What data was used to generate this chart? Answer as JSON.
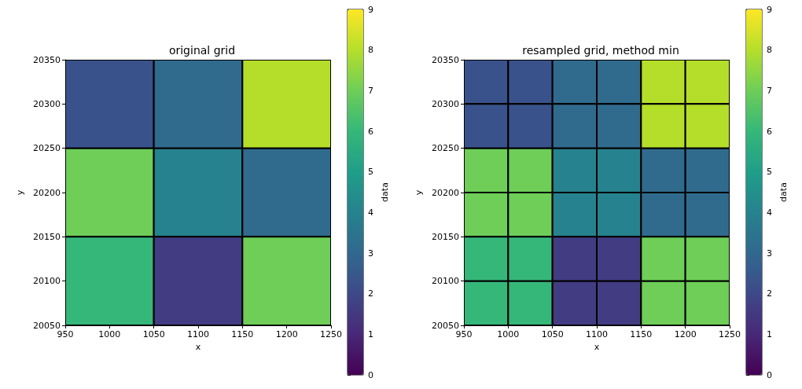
{
  "chart_data": [
    {
      "type": "heatmap",
      "title": "original grid",
      "xlabel": "x",
      "ylabel": "y",
      "clabel": "data",
      "xlim": [
        950,
        1250
      ],
      "ylim": [
        20050,
        20350
      ],
      "xticks": [
        950,
        1000,
        1050,
        1100,
        1150,
        1200,
        1250
      ],
      "yticks": [
        20050,
        20100,
        20150,
        20200,
        20250,
        20300,
        20350
      ],
      "clim": [
        0,
        9
      ],
      "cticks": [
        0,
        1,
        2,
        3,
        4,
        5,
        6,
        7,
        8,
        9
      ],
      "cells": [
        [
          2.3,
          3.1,
          8
        ],
        [
          7,
          4,
          3.1
        ],
        [
          6,
          1.6,
          7
        ]
      ]
    },
    {
      "type": "heatmap",
      "title": "resampled grid, method min",
      "xlabel": "x",
      "ylabel": "y",
      "clabel": "data",
      "xlim": [
        950,
        1250
      ],
      "ylim": [
        20050,
        20350
      ],
      "xticks": [
        950,
        1000,
        1050,
        1100,
        1150,
        1200,
        1250
      ],
      "yticks": [
        20050,
        20100,
        20150,
        20200,
        20250,
        20300,
        20350
      ],
      "clim": [
        0,
        9
      ],
      "cticks": [
        0,
        1,
        2,
        3,
        4,
        5,
        6,
        7,
        8,
        9
      ],
      "cells": [
        [
          2.3,
          2.3,
          3.1,
          3.1,
          8,
          8
        ],
        [
          2.3,
          2.3,
          3.1,
          3.1,
          8,
          8
        ],
        [
          7,
          7,
          4,
          4,
          3.1,
          3.1
        ],
        [
          7,
          7,
          4,
          4,
          3.1,
          3.1
        ],
        [
          6,
          6,
          1.6,
          1.6,
          7,
          7
        ],
        [
          6,
          6,
          1.6,
          1.6,
          7,
          7
        ]
      ]
    }
  ]
}
